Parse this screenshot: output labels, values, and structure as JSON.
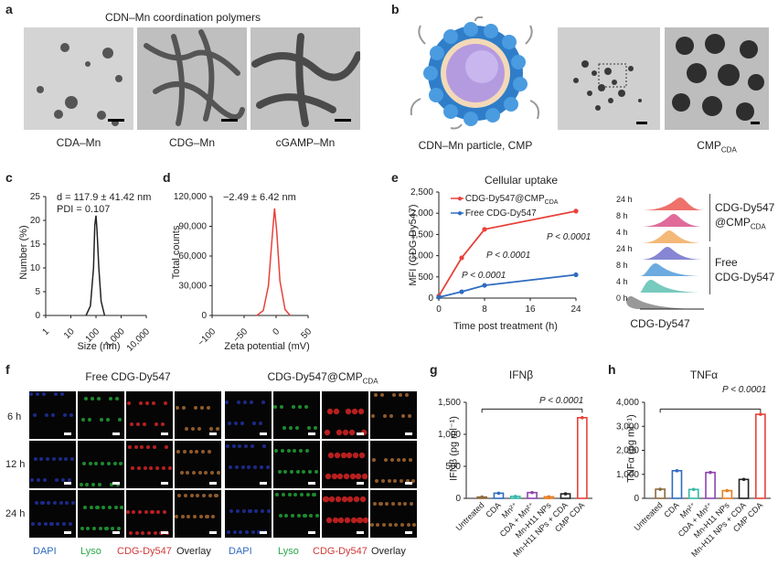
{
  "panel_letters": {
    "a": "a",
    "b": "b",
    "c": "c",
    "d": "d",
    "e": "e",
    "f": "f",
    "g": "g",
    "h": "h"
  },
  "a": {
    "title": "CDN–Mn coordination polymers",
    "labels": [
      "CDA–Mn",
      "CDG–Mn",
      "cGAMP–Mn"
    ]
  },
  "b": {
    "caption_left": "CDN–Mn particle, CMP",
    "caption_right_main": "CMP",
    "caption_right_sub": "CDA"
  },
  "c": {
    "annot1": "d = 117.9 ± 41.42 nm",
    "annot2": "PDI = 0.107",
    "xlabel": "Size (nm)",
    "ylabel": "Number (%)",
    "xticks": [
      "1",
      "10",
      "100",
      "1,000",
      "10,000"
    ],
    "yticks": [
      "0",
      "5",
      "10",
      "15",
      "20",
      "25"
    ]
  },
  "d": {
    "annot": "−2.49 ± 6.42 nm",
    "xlabel": "Zeta potential (mV)",
    "ylabel": "Total counts",
    "xticks": [
      "−100",
      "−50",
      "0",
      "50"
    ],
    "yticks": [
      "0",
      "30,000",
      "60,000",
      "90,000",
      "120,000"
    ]
  },
  "e": {
    "title": "Cellular uptake",
    "ylabel": "MFI (CDG-Dy547)",
    "xlabel": "Time post treatment (h)",
    "xticks": [
      "0",
      "8",
      "16",
      "24"
    ],
    "yticks": [
      "0",
      "500",
      "1,000",
      "1,500",
      "2,000",
      "2,500"
    ],
    "legend1_main": "CDG-Dy547@CMP",
    "legend1_sub": "CDA",
    "legend2": "Free CDG-Dy547",
    "p1": "P < 0.0001",
    "p2": "P < 0.0001",
    "p3": "P < 0.0001",
    "hist_rows": [
      "24 h",
      "8 h",
      "4 h",
      "24 h",
      "8 h",
      "4 h",
      "0 h"
    ],
    "hist_label1": "CDG-Dy547",
    "hist_label1b_main": "@CMP",
    "hist_label1b_sub": "CDA",
    "hist_label2": "Free",
    "hist_label2b": "CDG-Dy547",
    "hist_xlabel": "CDG-Dy547"
  },
  "f": {
    "group1_main": "Free CDG-Dy547",
    "group2_main": "CDG-Dy547@CMP",
    "group2_sub": "CDA",
    "rows": [
      "6 h",
      "12 h",
      "24 h"
    ],
    "bottom1": [
      "DAPI",
      "Lyso",
      "CDG-Dy547",
      "Overlay"
    ],
    "bottom2": [
      "DAPI",
      "Lyso",
      "CDG-Dy547",
      "Overlay"
    ]
  },
  "g": {
    "title": "IFNβ",
    "ylabel": "IFNβ (pg ml⁻¹)",
    "yticks": [
      "0",
      "500",
      "1,000",
      "1,500"
    ],
    "pval": "P < 0.0001",
    "cats": [
      "Untreated",
      "CDA",
      "Mn²⁺",
      "CDA + Mn²⁺",
      "Mn-H11 NPs",
      "Mn-H11 NPs + CDA",
      "CMP CDA"
    ]
  },
  "h": {
    "title": "TNFα",
    "ylabel": "TNFα (pg ml⁻¹)",
    "yticks": [
      "0",
      "1,000",
      "2,000",
      "3,000",
      "4,000"
    ],
    "pval": "P < 0.0001",
    "cats": [
      "Untreated",
      "CDA",
      "Mn²⁺",
      "CDA + Mn²⁺",
      "Mn-H11 NPs",
      "Mn-H11 NPs + CDA",
      "CMP CDA"
    ]
  },
  "colors": {
    "red": "#e8413a",
    "blue": "#2f6cc0",
    "black": "#222222",
    "bar_colors": [
      "#8b6a3e",
      "#2f6cc0",
      "#35b8a8",
      "#8e44ad",
      "#e67e22",
      "#222222",
      "#e8413a"
    ]
  },
  "chart_data": [
    {
      "type": "line",
      "panel": "c",
      "x": [
        40,
        60,
        80,
        90,
        100,
        110,
        130,
        160,
        220
      ],
      "y": [
        0,
        2,
        10,
        19,
        21,
        18,
        10,
        3,
        0
      ],
      "xscale": "log",
      "xlim": [
        1,
        10000
      ],
      "ylim": [
        0,
        25
      ],
      "xlabel": "Size (nm)",
      "ylabel": "Number (%)"
    },
    {
      "type": "line",
      "panel": "d",
      "x": [
        -30,
        -20,
        -12,
        -6,
        -2.5,
        1,
        6,
        14,
        22
      ],
      "y": [
        0,
        5000,
        30000,
        80000,
        108000,
        85000,
        35000,
        6000,
        0
      ],
      "xlim": [
        -100,
        50
      ],
      "ylim": [
        0,
        120000
      ],
      "xlabel": "Zeta potential (mV)",
      "ylabel": "Total counts"
    },
    {
      "type": "line",
      "panel": "e",
      "x": [
        0,
        4,
        8,
        24
      ],
      "series": [
        {
          "name": "CDG-Dy547@CMP CDA",
          "values": [
            50,
            950,
            1620,
            2050
          ]
        },
        {
          "name": "Free CDG-Dy547",
          "values": [
            20,
            150,
            300,
            550
          ]
        }
      ],
      "xlim": [
        0,
        24
      ],
      "ylim": [
        0,
        2500
      ],
      "xlabel": "Time post treatment (h)",
      "ylabel": "MFI (CDG-Dy547)"
    },
    {
      "type": "bar",
      "panel": "g",
      "categories": [
        "Untreated",
        "CDA",
        "Mn²⁺",
        "CDA + Mn²⁺",
        "Mn-H11 NPs",
        "Mn-H11 NPs + CDA",
        "CMP CDA"
      ],
      "values": [
        20,
        80,
        30,
        90,
        25,
        70,
        1260
      ],
      "ylim": [
        0,
        1500
      ],
      "title": "IFNβ",
      "ylabel": "IFNβ (pg ml⁻¹)"
    },
    {
      "type": "bar",
      "panel": "h",
      "categories": [
        "Untreated",
        "CDA",
        "Mn²⁺",
        "CDA + Mn²⁺",
        "Mn-H11 NPs",
        "Mn-H11 NPs + CDA",
        "CMP CDA"
      ],
      "values": [
        380,
        1150,
        370,
        1080,
        320,
        790,
        3500
      ],
      "ylim": [
        0,
        4000
      ],
      "title": "TNFα",
      "ylabel": "TNFα (pg ml⁻¹)"
    }
  ]
}
